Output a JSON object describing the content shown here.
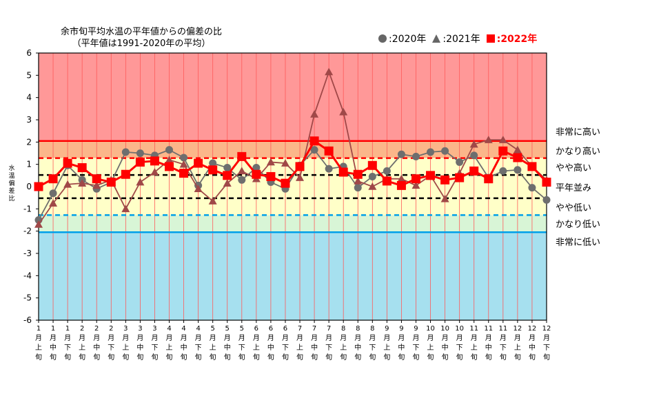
{
  "title_line1": "余市旬平均水温の平年値からの偏差の比",
  "title_line2": "（平年値は1991-2020年の平均）",
  "legend": [
    {
      "marker": "circle",
      "label": ":2020年",
      "color": "#666666"
    },
    {
      "marker": "triangle",
      "label": ":2021年",
      "color": "#666666"
    },
    {
      "marker": "square",
      "label": ":2022年",
      "color": "#ff0000"
    }
  ],
  "ylabel": "水温偏差比",
  "zones": [
    {
      "label": "非常に高い",
      "y": 2.5
    },
    {
      "label": "かなり高い",
      "y": 1.65
    },
    {
      "label": "やや高い",
      "y": 0.9
    },
    {
      "label": "平年並み",
      "y": 0.0
    },
    {
      "label": "やや低い",
      "y": -0.9
    },
    {
      "label": "かなり低い",
      "y": -1.65
    },
    {
      "label": "非常に低い",
      "y": -2.45
    }
  ],
  "colors": {
    "very_high": "#ff9898",
    "high": "#fbb68a",
    "normal": "#ffffc8",
    "low": "#d8f5d6",
    "very_low": "#a6e0ef",
    "grid": "#ff5a5a",
    "red_line": "#ff0000",
    "blue_line": "#00a0e8",
    "y2020": "#6e6e6e",
    "y2021": "#6e6e6e",
    "y2021_line": "#a04848",
    "y2022": "#ff0000"
  },
  "chart_data": {
    "type": "line",
    "ylim": [
      -6,
      6
    ],
    "yticks": [
      -6,
      -5,
      -4,
      -3,
      -2,
      -1,
      0,
      1,
      2,
      3,
      4,
      5,
      6
    ],
    "thresholds": {
      "very_high": 2.05,
      "high": 1.28,
      "normal_upper": 0.52,
      "normal_lower": -0.52,
      "low": -1.28,
      "very_low": -2.05
    },
    "categories": [
      [
        "1",
        "月",
        "上",
        "旬"
      ],
      [
        "1",
        "月",
        "中",
        "旬"
      ],
      [
        "1",
        "月",
        "下",
        "旬"
      ],
      [
        "2",
        "月",
        "上",
        "旬"
      ],
      [
        "2",
        "月",
        "中",
        "旬"
      ],
      [
        "2",
        "月",
        "下",
        "旬"
      ],
      [
        "3",
        "月",
        "上",
        "旬"
      ],
      [
        "3",
        "月",
        "中",
        "旬"
      ],
      [
        "3",
        "月",
        "下",
        "旬"
      ],
      [
        "4",
        "月",
        "上",
        "旬"
      ],
      [
        "4",
        "月",
        "中",
        "旬"
      ],
      [
        "4",
        "月",
        "下",
        "旬"
      ],
      [
        "5",
        "月",
        "上",
        "旬"
      ],
      [
        "5",
        "月",
        "中",
        "旬"
      ],
      [
        "5",
        "月",
        "下",
        "旬"
      ],
      [
        "6",
        "月",
        "上",
        "旬"
      ],
      [
        "6",
        "月",
        "中",
        "旬"
      ],
      [
        "6",
        "月",
        "下",
        "旬"
      ],
      [
        "7",
        "月",
        "上",
        "旬"
      ],
      [
        "7",
        "月",
        "中",
        "旬"
      ],
      [
        "7",
        "月",
        "下",
        "旬"
      ],
      [
        "8",
        "月",
        "上",
        "旬"
      ],
      [
        "8",
        "月",
        "中",
        "旬"
      ],
      [
        "8",
        "月",
        "下",
        "旬"
      ],
      [
        "9",
        "月",
        "上",
        "旬"
      ],
      [
        "9",
        "月",
        "中",
        "旬"
      ],
      [
        "9",
        "月",
        "下",
        "旬"
      ],
      [
        "10",
        "月",
        "上",
        "旬"
      ],
      [
        "10",
        "月",
        "中",
        "旬"
      ],
      [
        "10",
        "月",
        "下",
        "旬"
      ],
      [
        "11",
        "月",
        "上",
        "旬"
      ],
      [
        "11",
        "月",
        "中",
        "旬"
      ],
      [
        "11",
        "月",
        "下",
        "旬"
      ],
      [
        "12",
        "月",
        "上",
        "旬"
      ],
      [
        "12",
        "月",
        "中",
        "旬"
      ],
      [
        "12",
        "月",
        "下",
        "旬"
      ]
    ],
    "series": [
      {
        "name": "2020年",
        "marker": "circle",
        "values": [
          -1.5,
          -0.3,
          0.95,
          0.3,
          -0.1,
          0.2,
          1.55,
          1.5,
          1.4,
          1.65,
          1.3,
          0.05,
          1.05,
          0.85,
          0.3,
          0.85,
          0.2,
          -0.1,
          0.95,
          1.65,
          0.8,
          0.9,
          -0.05,
          0.45,
          0.7,
          1.45,
          1.35,
          1.55,
          1.6,
          1.1,
          1.4,
          0.4,
          0.7,
          0.75,
          -0.05,
          -0.6
        ]
      },
      {
        "name": "2021年",
        "marker": "triangle",
        "values": [
          -1.7,
          -0.75,
          0.1,
          0.15,
          0.05,
          0.3,
          -1.0,
          0.2,
          0.65,
          1.2,
          1.0,
          -0.1,
          -0.65,
          0.15,
          0.7,
          0.35,
          1.1,
          1.05,
          0.4,
          3.25,
          5.15,
          3.35,
          0.25,
          0.0,
          0.35,
          0.35,
          0.05,
          0.5,
          -0.55,
          0.6,
          1.9,
          2.1,
          2.1,
          1.65,
          0.9,
          0.3
        ]
      },
      {
        "name": "2022年",
        "marker": "square",
        "values": [
          0.0,
          0.35,
          1.05,
          0.85,
          0.35,
          0.2,
          0.55,
          1.1,
          1.15,
          0.9,
          0.6,
          1.05,
          0.75,
          0.5,
          1.35,
          0.55,
          0.45,
          0.15,
          0.9,
          2.05,
          1.6,
          0.65,
          0.55,
          0.95,
          0.25,
          0.05,
          0.35,
          0.5,
          0.3,
          0.4,
          0.7,
          0.35,
          1.6,
          1.3,
          0.9,
          0.2
        ]
      }
    ]
  }
}
